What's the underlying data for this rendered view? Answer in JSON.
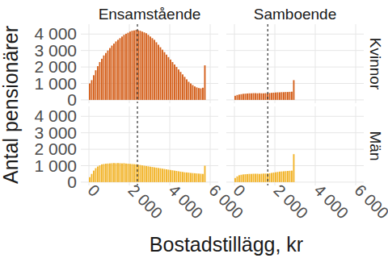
{
  "chart_data": {
    "type": "histogram",
    "x_label": "Bostadstillägg, kr",
    "y_label": "Antal pensionärer",
    "columns": [
      "Ensamstående",
      "Samboende"
    ],
    "rows": [
      "Kvinnor",
      "Män"
    ],
    "xlim": [
      -400,
      6400
    ],
    "xticks": [
      0,
      {
        "value": 2000,
        "label": "2 000"
      },
      {
        "value": 4000,
        "label": "4 000"
      },
      {
        "value": 6000,
        "label": "6 000"
      }
    ],
    "ylim": [
      -200,
      4600
    ],
    "yticks": [
      0,
      {
        "value": 1000,
        "label": "1 000"
      },
      {
        "value": 2000,
        "label": "2 000"
      },
      {
        "value": 3000,
        "label": "3 000"
      },
      {
        "value": 4000,
        "label": "4 000"
      }
    ],
    "grid": true,
    "panels": [
      [
        {
          "color": "#d4601c",
          "vline": 2400,
          "bins": [
            0,
            100,
            200,
            300,
            400,
            500,
            600,
            700,
            800,
            900,
            1000,
            1100,
            1200,
            1300,
            1400,
            1500,
            1600,
            1700,
            1800,
            1900,
            2000,
            2100,
            2200,
            2300,
            2400,
            2500,
            2600,
            2700,
            2800,
            2900,
            3000,
            3100,
            3200,
            3300,
            3400,
            3500,
            3600,
            3700,
            3800,
            3900,
            4000,
            4100,
            4200,
            4300,
            4400,
            4500,
            4600,
            4700,
            4800,
            4900,
            5000,
            5100,
            5200,
            5300,
            5400,
            5500,
            5600,
            5700,
            5800
          ],
          "counts": [
            1000,
            1200,
            1500,
            1800,
            2050,
            2300,
            2500,
            2700,
            2850,
            3000,
            3150,
            3300,
            3420,
            3550,
            3650,
            3750,
            3850,
            3950,
            4020,
            4080,
            4150,
            4200,
            4220,
            4250,
            4230,
            4200,
            4150,
            4100,
            4050,
            3950,
            3850,
            3750,
            3650,
            3500,
            3350,
            3200,
            3050,
            2900,
            2750,
            2600,
            2450,
            2300,
            2150,
            2000,
            1850,
            1700,
            1550,
            1400,
            1250,
            1100,
            1000,
            900,
            820,
            760,
            720,
            700,
            740,
            2100
          ]
        },
        {
          "color": "#d4601c",
          "vline": 1650,
          "bins": [
            0,
            100,
            200,
            300,
            400,
            500,
            600,
            700,
            800,
            900,
            1000,
            1100,
            1200,
            1300,
            1400,
            1500,
            1600,
            1700,
            1800,
            1900,
            2000,
            2100,
            2200,
            2300,
            2400,
            2500,
            2600,
            2700,
            2800,
            2900,
            3000
          ],
          "counts": [
            250,
            300,
            330,
            350,
            370,
            380,
            390,
            400,
            400,
            410,
            410,
            400,
            410,
            400,
            400,
            410,
            400,
            420,
            430,
            440,
            450,
            460,
            460,
            470,
            470,
            480,
            480,
            490,
            500,
            1200
          ]
        }
      ],
      [
        {
          "color": "#f2b42a",
          "vline": 2400,
          "bins": [
            0,
            100,
            200,
            300,
            400,
            500,
            600,
            700,
            800,
            900,
            1000,
            1100,
            1200,
            1300,
            1400,
            1500,
            1600,
            1700,
            1800,
            1900,
            2000,
            2100,
            2200,
            2300,
            2400,
            2500,
            2600,
            2700,
            2800,
            2900,
            3000,
            3100,
            3200,
            3300,
            3400,
            3500,
            3600,
            3700,
            3800,
            3900,
            4000,
            4100,
            4200,
            4300,
            4400,
            4500,
            4600,
            4700,
            4800,
            4900,
            5000,
            5100,
            5200,
            5300,
            5400,
            5500,
            5600,
            5700,
            5800
          ],
          "counts": [
            300,
            500,
            700,
            850,
            950,
            1020,
            1080,
            1100,
            1120,
            1130,
            1140,
            1150,
            1160,
            1150,
            1160,
            1150,
            1140,
            1150,
            1130,
            1120,
            1110,
            1100,
            1090,
            1080,
            1060,
            1040,
            1020,
            1000,
            980,
            960,
            940,
            920,
            900,
            880,
            860,
            840,
            820,
            800,
            780,
            760,
            740,
            720,
            700,
            680,
            660,
            640,
            620,
            600,
            590,
            580,
            560,
            550,
            540,
            530,
            520,
            510,
            500,
            1000
          ]
        },
        {
          "color": "#f2b42a",
          "vline": 1650,
          "bins": [
            0,
            100,
            200,
            300,
            400,
            500,
            600,
            700,
            800,
            900,
            1000,
            1100,
            1200,
            1300,
            1400,
            1500,
            1600,
            1700,
            1800,
            1900,
            2000,
            2100,
            2200,
            2300,
            2400,
            2500,
            2600,
            2700,
            2800,
            2900,
            3000
          ],
          "counts": [
            250,
            350,
            420,
            450,
            470,
            480,
            490,
            500,
            500,
            510,
            510,
            510,
            500,
            510,
            520,
            520,
            530,
            540,
            560,
            580,
            600,
            620,
            640,
            650,
            660,
            670,
            680,
            690,
            700,
            1700
          ]
        }
      ]
    ]
  }
}
